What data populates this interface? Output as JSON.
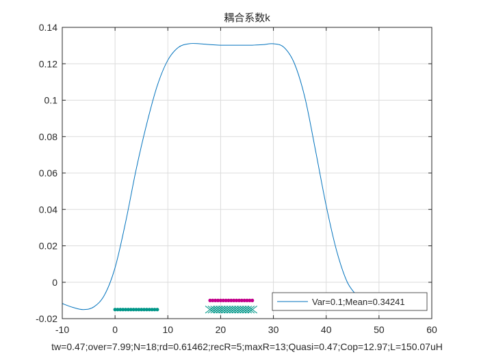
{
  "chart_data": {
    "type": "line",
    "title": "耦合系数k",
    "xlabel": "tw=0.47;over=7.99;N=18;rd=0.61462;recR=5;maxR=13;Quasi=0.47;Cop=12.97;L=150.07uH",
    "ylabel": "",
    "xlim": [
      -10,
      60
    ],
    "ylim": [
      -0.02,
      0.14
    ],
    "xticks": [
      -10,
      0,
      10,
      20,
      30,
      40,
      50,
      60
    ],
    "yticks": [
      -0.02,
      0,
      0.02,
      0.04,
      0.06,
      0.08,
      0.1,
      0.12,
      0.14
    ],
    "xtick_labels": [
      "-10",
      "0",
      "10",
      "20",
      "30",
      "40",
      "50",
      "60"
    ],
    "ytick_labels": [
      "-0.02",
      "0",
      "0.02",
      "0.04",
      "0.06",
      "0.08",
      "0.1",
      "0.12",
      "0.14"
    ],
    "grid": true,
    "legend": {
      "location": "bottom-right",
      "entries": [
        "Var=0.1;Mean=0.34241"
      ]
    },
    "series": [
      {
        "name": "Var=0.1;Mean=0.34241",
        "style": "line",
        "color": "#0072BD",
        "x": [
          -10,
          -8,
          -6,
          -4,
          -2,
          0,
          2,
          4,
          6,
          8,
          10,
          12,
          14,
          16,
          18,
          20,
          22,
          24,
          26,
          28,
          30,
          32,
          34,
          36,
          38,
          40,
          42,
          44,
          46
        ],
        "y": [
          -0.0117,
          -0.0138,
          -0.015,
          -0.0135,
          -0.007,
          0.008,
          0.033,
          0.062,
          0.087,
          0.108,
          0.122,
          0.129,
          0.131,
          0.131,
          0.1305,
          0.1302,
          0.1302,
          0.1302,
          0.1302,
          0.1305,
          0.131,
          0.129,
          0.12,
          0.101,
          0.072,
          0.042,
          0.017,
          0.0,
          -0.008
        ]
      },
      {
        "name": "teal dots",
        "style": "markers-dot",
        "color": "#009688",
        "x": [
          0,
          0.5,
          1,
          1.5,
          2,
          2.5,
          3,
          3.5,
          4,
          4.5,
          5,
          5.5,
          6,
          6.5,
          7,
          7.5,
          8
        ],
        "y": [
          -0.015,
          -0.015,
          -0.015,
          -0.015,
          -0.015,
          -0.015,
          -0.015,
          -0.015,
          -0.015,
          -0.015,
          -0.015,
          -0.015,
          -0.015,
          -0.015,
          -0.015,
          -0.015,
          -0.015
        ]
      },
      {
        "name": "magenta dots",
        "style": "markers-dot",
        "color": "#C2008A",
        "x": [
          18,
          18.5,
          19,
          19.5,
          20,
          20.5,
          21,
          21.5,
          22,
          22.5,
          23,
          23.5,
          24,
          24.5,
          25,
          25.5,
          26
        ],
        "y": [
          -0.01,
          -0.01,
          -0.01,
          -0.01,
          -0.01,
          -0.01,
          -0.01,
          -0.01,
          -0.01,
          -0.01,
          -0.01,
          -0.01,
          -0.01,
          -0.01,
          -0.01,
          -0.01,
          -0.01
        ]
      },
      {
        "name": "teal crosses",
        "style": "markers-x",
        "color": "#009688",
        "x": [
          18,
          18.5,
          19,
          19.5,
          20,
          20.5,
          21,
          21.5,
          22,
          22.5,
          23,
          23.5,
          24,
          24.5,
          25,
          25.5,
          26
        ],
        "y": [
          -0.015,
          -0.015,
          -0.015,
          -0.015,
          -0.015,
          -0.015,
          -0.015,
          -0.015,
          -0.015,
          -0.015,
          -0.015,
          -0.015,
          -0.015,
          -0.015,
          -0.015,
          -0.015,
          -0.015
        ]
      }
    ]
  }
}
